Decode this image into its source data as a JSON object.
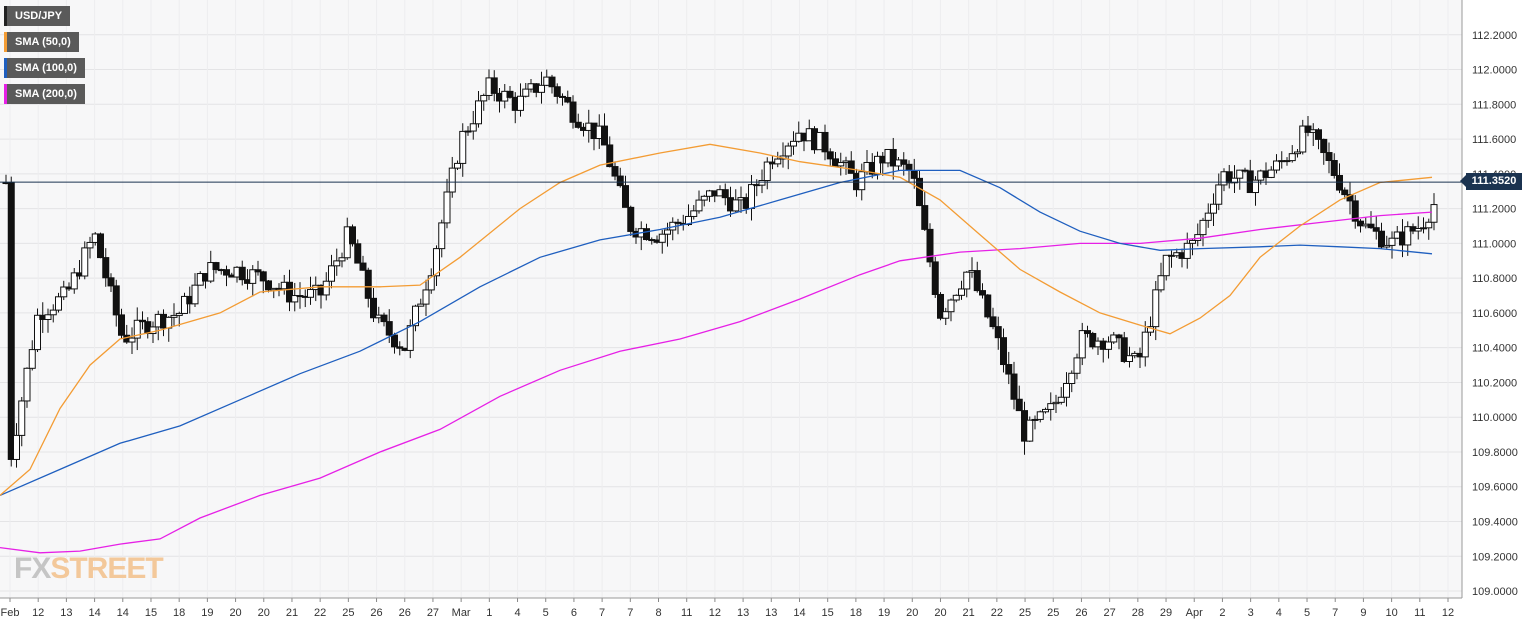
{
  "legend": [
    {
      "label": "USD/JPY",
      "color": "#222222"
    },
    {
      "label": "SMA (50,0)",
      "color": "#f39c34"
    },
    {
      "label": "SMA (100,0)",
      "color": "#1f5fbf"
    },
    {
      "label": "SMA (200,0)",
      "color": "#e620e6"
    }
  ],
  "current_price": "111.3520",
  "watermark": {
    "part1": "FX",
    "part2": "STREET"
  },
  "chart_data": {
    "type": "candlestick",
    "symbol": "USD/JPY",
    "ylim": [
      108.96,
      112.4
    ],
    "y_ticks": [
      "109.0000",
      "109.2000",
      "109.4000",
      "109.6000",
      "109.8000",
      "110.0000",
      "110.2000",
      "110.4000",
      "110.6000",
      "110.8000",
      "111.0000",
      "111.2000",
      "111.4000",
      "111.6000",
      "111.8000",
      "112.0000",
      "112.2000"
    ],
    "x_tick_labels": [
      "Feb",
      "12",
      "13",
      "14",
      "14",
      "15",
      "18",
      "19",
      "20",
      "20",
      "21",
      "22",
      "25",
      "26",
      "26",
      "27",
      "Mar",
      "1",
      "4",
      "5",
      "6",
      "7",
      "7",
      "8",
      "11",
      "12",
      "13",
      "13",
      "14",
      "15",
      "18",
      "19",
      "20",
      "20",
      "21",
      "22",
      "25",
      "25",
      "26",
      "27",
      "28",
      "29",
      "Apr",
      "2",
      "3",
      "4",
      "5",
      "7",
      "9",
      "10",
      "11",
      "12"
    ],
    "current_price": 111.352,
    "candles_summary": [
      {
        "x": "Feb",
        "close": 109.75
      },
      {
        "x": "12",
        "close": 110.6
      },
      {
        "x": "13",
        "close": 110.7
      },
      {
        "x": "14",
        "close": 111.05
      },
      {
        "x": "14",
        "close": 110.45
      },
      {
        "x": "15",
        "close": 110.55
      },
      {
        "x": "18",
        "close": 110.6
      },
      {
        "x": "19",
        "close": 110.85
      },
      {
        "x": "20",
        "close": 110.85
      },
      {
        "x": "20",
        "close": 110.8
      },
      {
        "x": "21",
        "close": 110.7
      },
      {
        "x": "22",
        "close": 110.7
      },
      {
        "x": "25",
        "close": 111.05
      },
      {
        "x": "26",
        "close": 110.55
      },
      {
        "x": "26",
        "close": 110.4
      },
      {
        "x": "27",
        "close": 110.9
      },
      {
        "x": "Mar",
        "close": 111.6
      },
      {
        "x": "1",
        "close": 111.9
      },
      {
        "x": "4",
        "close": 111.8
      },
      {
        "x": "5",
        "close": 111.95
      },
      {
        "x": "6",
        "close": 111.75
      },
      {
        "x": "7",
        "close": 111.6
      },
      {
        "x": "7",
        "close": 111.1
      },
      {
        "x": "8",
        "close": 111.05
      },
      {
        "x": "11",
        "close": 111.15
      },
      {
        "x": "12",
        "close": 111.3
      },
      {
        "x": "13",
        "close": 111.2
      },
      {
        "x": "13",
        "close": 111.5
      },
      {
        "x": "14",
        "close": 111.65
      },
      {
        "x": "15",
        "close": 111.55
      },
      {
        "x": "18",
        "close": 111.35
      },
      {
        "x": "19",
        "close": 111.5
      },
      {
        "x": "20",
        "close": 111.4
      },
      {
        "x": "20",
        "close": 110.6
      },
      {
        "x": "21",
        "close": 110.85
      },
      {
        "x": "22",
        "close": 110.45
      },
      {
        "x": "25",
        "close": 109.9
      },
      {
        "x": "25",
        "close": 110.05
      },
      {
        "x": "26",
        "close": 110.45
      },
      {
        "x": "27",
        "close": 110.45
      },
      {
        "x": "28",
        "close": 110.3
      },
      {
        "x": "29",
        "close": 110.9
      },
      {
        "x": "Apr",
        "close": 111.0
      },
      {
        "x": "2",
        "close": 111.4
      },
      {
        "x": "3",
        "close": 111.35
      },
      {
        "x": "4",
        "close": 111.45
      },
      {
        "x": "5",
        "close": 111.65
      },
      {
        "x": "7",
        "close": 111.4
      },
      {
        "x": "9",
        "close": 111.1
      },
      {
        "x": "10",
        "close": 111.0
      },
      {
        "x": "11",
        "close": 111.1
      },
      {
        "x": "12",
        "close": 111.35
      }
    ],
    "series": [
      {
        "name": "SMA (50,0)",
        "color": "#f39c34"
      },
      {
        "name": "SMA (100,0)",
        "color": "#1f5fbf"
      },
      {
        "name": "SMA (200,0)",
        "color": "#e620e6"
      }
    ],
    "grid": true,
    "legend_position": "top-left"
  }
}
